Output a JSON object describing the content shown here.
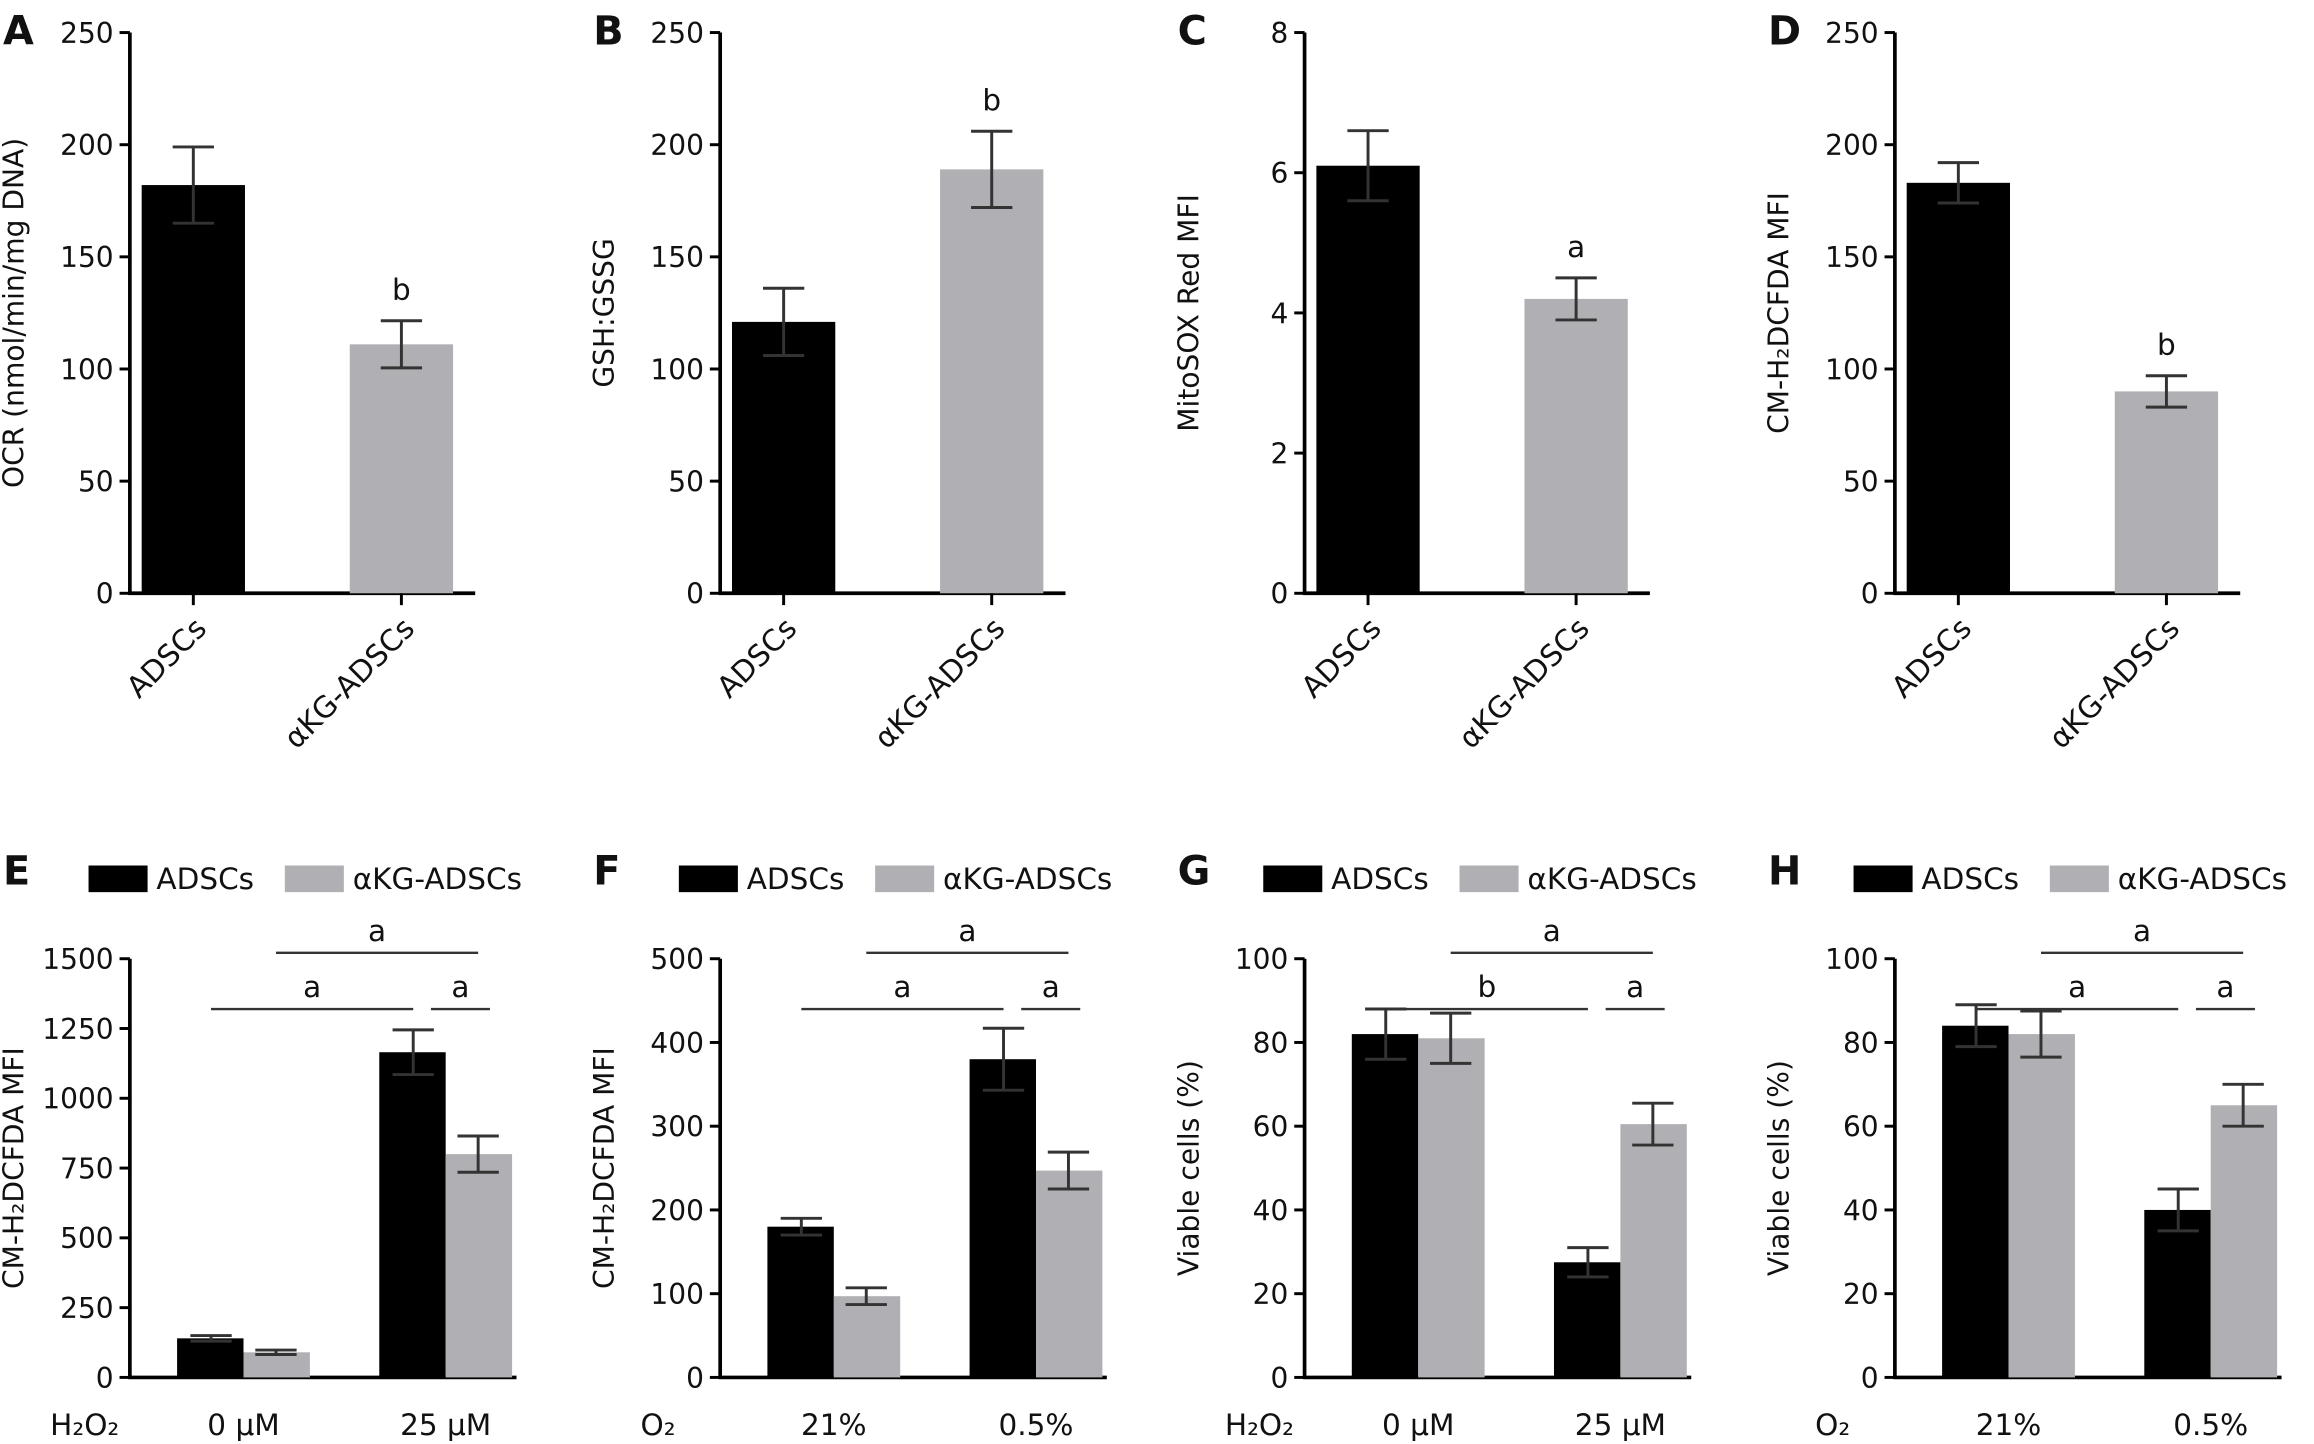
{
  "colors": {
    "ADSCs": "#000000",
    "aKG-ADSCs": "#b0b0b4"
  },
  "legend": [
    "ADSCs",
    "αKG-ADSCs"
  ],
  "chart_data": [
    {
      "letter": "A",
      "type": "bar",
      "ylabel": "OCR (nmol/min/mg DNA)",
      "ylim": [
        0,
        250
      ],
      "yticks": [
        0,
        50,
        100,
        150,
        200,
        250
      ],
      "categories": [
        "ADSCs",
        "αKG-ADSCs"
      ],
      "values": [
        182,
        111
      ],
      "errors": [
        17,
        10.5
      ],
      "sig": [
        "",
        "b"
      ]
    },
    {
      "letter": "B",
      "type": "bar",
      "ylabel": "GSH:GSSG",
      "ylim": [
        0,
        250
      ],
      "yticks": [
        0,
        50,
        100,
        150,
        200,
        250
      ],
      "categories": [
        "ADSCs",
        "αKG-ADSCs"
      ],
      "values": [
        121,
        189
      ],
      "errors": [
        15,
        17
      ],
      "sig": [
        "",
        "b"
      ]
    },
    {
      "letter": "C",
      "type": "bar",
      "ylabel": "MitoSOX Red MFI",
      "ylim": [
        0,
        8
      ],
      "yticks": [
        0,
        2,
        4,
        6,
        8
      ],
      "categories": [
        "ADSCs",
        "αKG-ADSCs"
      ],
      "values": [
        6.1,
        4.2
      ],
      "errors": [
        0.5,
        0.3
      ],
      "sig": [
        "",
        "a"
      ]
    },
    {
      "letter": "D",
      "type": "bar",
      "ylabel": "CM-H₂DCFDA MFI",
      "ylim": [
        0,
        250
      ],
      "yticks": [
        0,
        50,
        100,
        150,
        200,
        250
      ],
      "categories": [
        "ADSCs",
        "αKG-ADSCs"
      ],
      "values": [
        183,
        90
      ],
      "errors": [
        9,
        7
      ],
      "sig": [
        "",
        "b"
      ]
    },
    {
      "letter": "E",
      "type": "grouped-bar",
      "ylabel": "CM-H₂DCFDA MFI",
      "ylim": [
        0,
        1500
      ],
      "yticks": [
        0,
        250,
        500,
        750,
        1000,
        1250,
        1500
      ],
      "group_label": "H₂O₂",
      "categories": [
        "0 μM",
        "25 μM"
      ],
      "series": [
        {
          "name": "ADSCs",
          "values": [
            140,
            1165
          ],
          "errors": [
            10,
            80
          ]
        },
        {
          "name": "αKG-ADSCs",
          "values": [
            90,
            800
          ],
          "errors": [
            8,
            65
          ]
        }
      ],
      "brackets": [
        {
          "from": [
            0,
            0
          ],
          "to": [
            1,
            0
          ],
          "label": "a",
          "level": 0
        },
        {
          "from": [
            0,
            1
          ],
          "to": [
            1,
            1
          ],
          "label": "a",
          "level": 1
        },
        {
          "from": [
            1,
            0
          ],
          "to": [
            1,
            1
          ],
          "label": "a",
          "level": 0
        }
      ]
    },
    {
      "letter": "F",
      "type": "grouped-bar",
      "ylabel": "CM-H₂DCFDA MFI",
      "ylim": [
        0,
        500
      ],
      "yticks": [
        0,
        100,
        200,
        300,
        400,
        500
      ],
      "group_label": "O₂",
      "categories": [
        "21%",
        "0.5%"
      ],
      "series": [
        {
          "name": "ADSCs",
          "values": [
            180,
            380
          ],
          "errors": [
            10,
            37
          ]
        },
        {
          "name": "αKG-ADSCs",
          "values": [
            97,
            247
          ],
          "errors": [
            10,
            22
          ]
        }
      ],
      "brackets": [
        {
          "from": [
            0,
            0
          ],
          "to": [
            1,
            0
          ],
          "label": "a",
          "level": 0
        },
        {
          "from": [
            0,
            1
          ],
          "to": [
            1,
            1
          ],
          "label": "a",
          "level": 1
        },
        {
          "from": [
            1,
            0
          ],
          "to": [
            1,
            1
          ],
          "label": "a",
          "level": 0
        }
      ]
    },
    {
      "letter": "G",
      "type": "grouped-bar",
      "ylabel": "Viable cells (%)",
      "ylim": [
        0,
        100
      ],
      "yticks": [
        0,
        20,
        40,
        60,
        80,
        100
      ],
      "group_label": "H₂O₂",
      "categories": [
        "0 μM",
        "25 μM"
      ],
      "series": [
        {
          "name": "ADSCs",
          "values": [
            82,
            27.5
          ],
          "errors": [
            6,
            3.5
          ]
        },
        {
          "name": "αKG-ADSCs",
          "values": [
            81,
            60.5
          ],
          "errors": [
            6,
            5
          ]
        }
      ],
      "brackets": [
        {
          "from": [
            0,
            0
          ],
          "to": [
            1,
            0
          ],
          "label": "b",
          "level": 0
        },
        {
          "from": [
            0,
            1
          ],
          "to": [
            1,
            1
          ],
          "label": "a",
          "level": 1
        },
        {
          "from": [
            1,
            0
          ],
          "to": [
            1,
            1
          ],
          "label": "a",
          "level": 0
        }
      ]
    },
    {
      "letter": "H",
      "type": "grouped-bar",
      "ylabel": "Viable cells (%)",
      "ylim": [
        0,
        100
      ],
      "yticks": [
        0,
        20,
        40,
        60,
        80,
        100
      ],
      "group_label": "O₂",
      "categories": [
        "21%",
        "0.5%"
      ],
      "series": [
        {
          "name": "ADSCs",
          "values": [
            84,
            40
          ],
          "errors": [
            5,
            5
          ]
        },
        {
          "name": "αKG-ADSCs",
          "values": [
            82,
            65
          ],
          "errors": [
            5.5,
            5
          ]
        }
      ],
      "brackets": [
        {
          "from": [
            0,
            0
          ],
          "to": [
            1,
            0
          ],
          "label": "a",
          "level": 0
        },
        {
          "from": [
            0,
            1
          ],
          "to": [
            1,
            1
          ],
          "label": "a",
          "level": 1
        },
        {
          "from": [
            1,
            0
          ],
          "to": [
            1,
            1
          ],
          "label": "a",
          "level": 0
        }
      ]
    }
  ]
}
